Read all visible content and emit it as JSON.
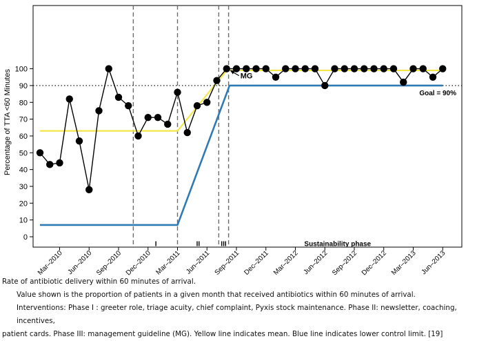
{
  "chart_data": {
    "type": "line",
    "ylabel": "Percentage of TTA <60 Minutes",
    "xlabel": "",
    "ylim": [
      -5,
      102
    ],
    "yticks": [
      0,
      10,
      20,
      30,
      40,
      50,
      60,
      70,
      80,
      90,
      100
    ],
    "x_tick_labels": [
      "Mar–2010",
      "Jun–2010",
      "Sep–2010",
      "Dec–2010",
      "Mar–2011",
      "Jun–2011",
      "Sep–2011",
      "Dec–2011",
      "Mar–2012",
      "Jun–2012",
      "Sep–2012",
      "Dec–2012",
      "Mar–2013",
      "Jun–2013"
    ],
    "months_axis_start": "Jan-2010",
    "x_tick_months": [
      2,
      5,
      8,
      11,
      14,
      17,
      20,
      23,
      26,
      29,
      32,
      35,
      38,
      41
    ],
    "grid": false,
    "series": [
      {
        "color": "#000000",
        "points": [
          [
            0,
            50
          ],
          [
            1,
            43
          ],
          [
            2,
            44
          ],
          [
            3,
            82
          ],
          [
            4,
            57
          ],
          [
            5,
            28
          ],
          [
            6,
            75
          ],
          [
            7,
            100
          ],
          [
            8,
            83
          ],
          [
            9,
            78
          ],
          [
            10,
            60
          ],
          [
            11,
            71
          ],
          [
            12,
            71
          ],
          [
            13,
            67
          ],
          [
            14,
            86
          ],
          [
            15,
            62
          ],
          [
            16,
            78
          ],
          [
            17,
            80
          ],
          [
            18,
            93
          ],
          [
            19,
            100
          ],
          [
            20,
            100
          ],
          [
            21,
            100
          ],
          [
            22,
            100
          ],
          [
            23,
            100
          ],
          [
            24,
            95
          ],
          [
            25,
            100
          ],
          [
            26,
            100
          ],
          [
            27,
            100
          ],
          [
            28,
            100
          ],
          [
            29,
            90
          ],
          [
            30,
            100
          ],
          [
            31,
            100
          ],
          [
            32,
            100
          ],
          [
            33,
            100
          ],
          [
            34,
            100
          ],
          [
            35,
            100
          ],
          [
            36,
            100
          ],
          [
            37,
            92
          ],
          [
            38,
            100
          ],
          [
            39,
            100
          ],
          [
            40,
            95
          ],
          [
            41,
            100
          ]
        ]
      },
      {
        "color": "#f2e64a",
        "points": [
          [
            0,
            63
          ],
          [
            14,
            63
          ],
          [
            19,
            99
          ],
          [
            41,
            99
          ]
        ]
      },
      {
        "color": "#2f7ab5",
        "points": [
          [
            0,
            7
          ],
          [
            14,
            7
          ],
          [
            19.3,
            90
          ],
          [
            41,
            90
          ]
        ]
      }
    ],
    "reference_line": {
      "y": 90,
      "style": "dotted",
      "label": "Goal = 90%"
    },
    "phase_dividers_month": [
      9.5,
      14,
      18.2,
      19.2
    ],
    "phase_labels": [
      {
        "text": "I",
        "month": 11.8
      },
      {
        "text": "II",
        "month": 16.1
      },
      {
        "text": "III",
        "month": 18.7
      },
      {
        "text": "Sustainability phase",
        "month": 30.3
      }
    ],
    "annotation": {
      "text": "MG",
      "x": 19,
      "y": 100
    }
  },
  "caption": {
    "title": "Rate of antibiotic delivery within 60 minutes of arrival.",
    "value_note": "Value shown is the proportion of patients in a given month that received antibiotics within 60 minutes of arrival.",
    "interventions_line1": "Interventions:  Phase I : greeter role, triage acuity, chief complaint, Pyxis stock maintenance. Phase II: newsletter, coaching, incentives,",
    "interventions_line2": "patient cards. Phase III: management guideline (MG). Yellow line indicates mean. Blue line indicates lower control limit.  [19]"
  }
}
